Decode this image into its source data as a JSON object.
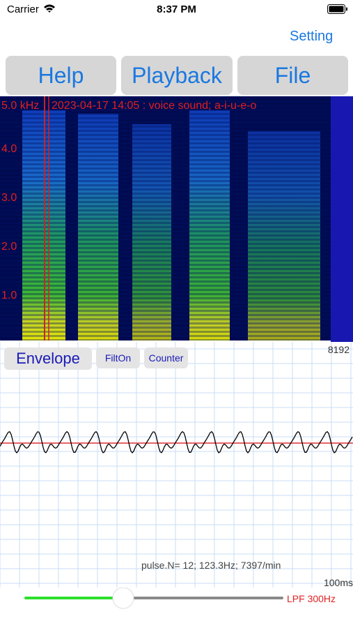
{
  "status_bar": {
    "carrier": "Carrier",
    "time": "8:37 PM"
  },
  "nav": {
    "setting": "Setting"
  },
  "toolbar": {
    "buttons": [
      "Help",
      "Playback",
      "File"
    ]
  },
  "spectrogram": {
    "caption": "2023-04-17 14:05 : voice sound; a-i-u-e-o",
    "axis_labels": [
      "5.0 kHz",
      "4.0",
      "3.0",
      "2.0",
      "1.0"
    ]
  },
  "waveform": {
    "buttons": [
      "Envelope",
      "FiltOn",
      "Counter"
    ],
    "max_label": "8192",
    "pulse_info": "pulse.N= 12; 123.3Hz; 7397/min",
    "time_scale": "100ms"
  },
  "slider": {
    "label": "LPF 300Hz"
  }
}
